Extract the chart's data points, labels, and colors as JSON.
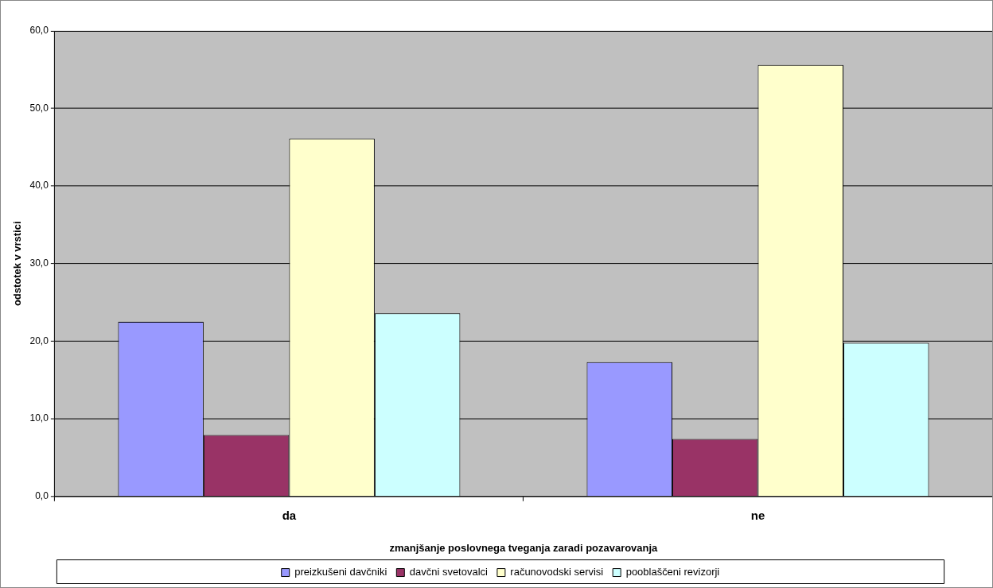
{
  "chart_data": {
    "type": "bar",
    "xlabel": "zmanjšanje poslovnega tveganja zaradi pozavarovanja",
    "ylabel": "odstotek v vrstici",
    "categories": [
      "da",
      "ne"
    ],
    "series": [
      {
        "name": "preizkušeni davčniki",
        "color": "#9999ff",
        "values": [
          22.5,
          17.3
        ]
      },
      {
        "name": "davčni svetovalci",
        "color": "#993366",
        "values": [
          7.9,
          7.4
        ]
      },
      {
        "name": "računovodski servisi",
        "color": "#ffffcc",
        "values": [
          46.1,
          55.6
        ]
      },
      {
        "name": "pooblaščeni revizorji",
        "color": "#ccffff",
        "values": [
          23.6,
          19.8
        ]
      }
    ],
    "ylim": [
      0,
      60
    ],
    "yticks": [
      {
        "value": 0,
        "label": "0,0"
      },
      {
        "value": 10,
        "label": "10,0"
      },
      {
        "value": 20,
        "label": "20,0"
      },
      {
        "value": 30,
        "label": "30,0"
      },
      {
        "value": 40,
        "label": "40,0"
      },
      {
        "value": 50,
        "label": "50,0"
      },
      {
        "value": 60,
        "label": "60,0"
      }
    ],
    "grid": "y",
    "legend": "bottom"
  }
}
